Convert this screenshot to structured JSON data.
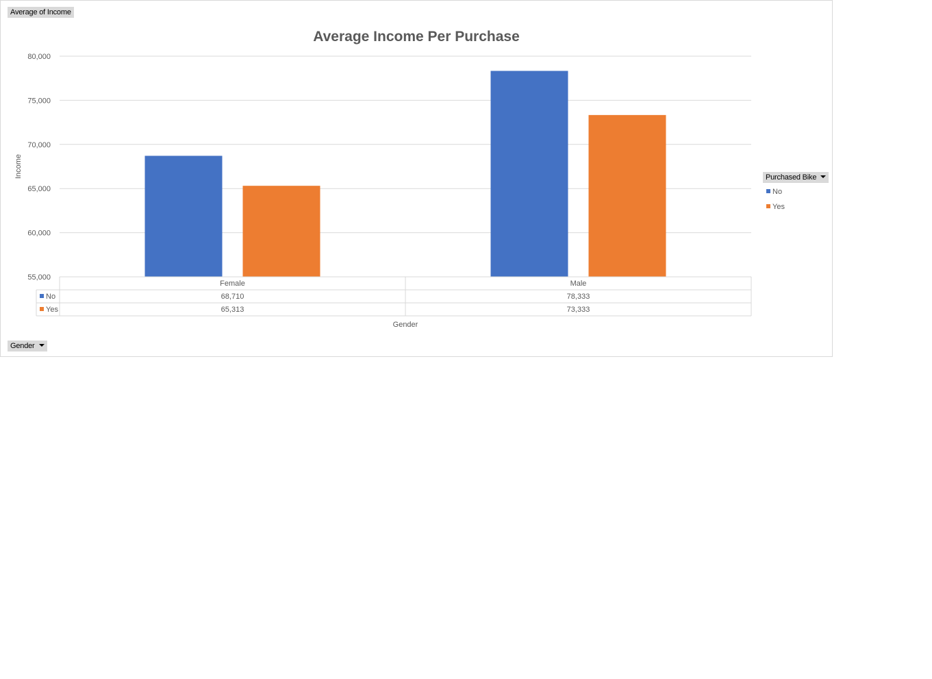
{
  "chart_data": {
    "type": "bar",
    "title": "Average Income Per Purchase",
    "xlabel": "Gender",
    "ylabel": "Income",
    "categories": [
      "Female",
      "Male"
    ],
    "series": [
      {
        "name": "No",
        "values": [
          68710,
          78333
        ],
        "labels": [
          "68,710",
          "78,333"
        ],
        "color": "#4472c4"
      },
      {
        "name": "Yes",
        "values": [
          65313,
          73333
        ],
        "labels": [
          "65,313",
          "73,333"
        ],
        "color": "#ed7d31"
      }
    ],
    "ylim": [
      55000,
      80000
    ],
    "yticks": [
      55000,
      60000,
      65000,
      70000,
      75000,
      80000
    ],
    "ytick_labels": [
      "55,000",
      "60,000",
      "65,000",
      "70,000",
      "75,000",
      "80,000"
    ],
    "grid": true,
    "legend": "right",
    "data_table": true
  },
  "pivot": {
    "values_field": "Average of Income",
    "axis_field": "Gender",
    "legend_field": "Purchased Bike"
  }
}
